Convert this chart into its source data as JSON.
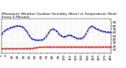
{
  "title": "Milwaukee Weather Outdoor Humidity (Blue) vs Temperature (Red) Every 5 Minutes",
  "title_fontsize": 3.2,
  "bg_color": "#ffffff",
  "grid_color": "#aaaaaa",
  "blue_color": "#0000dd",
  "red_color": "#dd0000",
  "ylim": [
    0,
    100
  ],
  "humidity": [
    55,
    57,
    59,
    61,
    63,
    65,
    66,
    67,
    68,
    69,
    70,
    71,
    72,
    73,
    74,
    74,
    75,
    75,
    76,
    76,
    77,
    77,
    78,
    78,
    79,
    79,
    80,
    80,
    80,
    80,
    79,
    79,
    79,
    78,
    78,
    78,
    77,
    76,
    75,
    73,
    71,
    69,
    67,
    65,
    63,
    61,
    58,
    55,
    52,
    49,
    47,
    45,
    43,
    42,
    41,
    40,
    40,
    39,
    39,
    39,
    38,
    38,
    38,
    38,
    38,
    38,
    38,
    38,
    38,
    39,
    39,
    40,
    41,
    42,
    43,
    45,
    47,
    49,
    51,
    54,
    57,
    59,
    62,
    64,
    66,
    68,
    69,
    70,
    71,
    71,
    71,
    70,
    69,
    68,
    67,
    65,
    63,
    61,
    59,
    57,
    55,
    53,
    52,
    51,
    50,
    49,
    49,
    49,
    49,
    49,
    49,
    50,
    50,
    51,
    52,
    52,
    53,
    53,
    53,
    53,
    52,
    52,
    51,
    50,
    49,
    48,
    47,
    46,
    45,
    44,
    43,
    43,
    43,
    43,
    43,
    43,
    43,
    43,
    44,
    44,
    45,
    46,
    48,
    50,
    52,
    55,
    58,
    61,
    64,
    67,
    70,
    73,
    75,
    77,
    78,
    79,
    79,
    79,
    78,
    77,
    76,
    75,
    74,
    73,
    72,
    71,
    70,
    69,
    68,
    67,
    67,
    66,
    66,
    65,
    65,
    64,
    64,
    63,
    63,
    62,
    62,
    62,
    62,
    62,
    62,
    62,
    62,
    62,
    62,
    62
  ],
  "temperature": [
    13,
    13,
    13,
    13,
    13,
    13,
    13,
    13,
    13,
    13,
    13,
    13,
    13,
    13,
    13,
    13,
    13,
    13,
    13,
    13,
    13,
    13,
    13,
    13,
    13,
    13,
    13,
    13,
    13,
    13,
    13,
    13,
    13,
    13,
    13,
    13,
    13,
    13,
    13,
    13,
    14,
    14,
    14,
    14,
    14,
    14,
    14,
    14,
    14,
    14,
    14,
    14,
    14,
    14,
    14,
    14,
    15,
    15,
    15,
    15,
    16,
    16,
    16,
    17,
    17,
    17,
    17,
    17,
    17,
    17,
    17,
    17,
    17,
    18,
    18,
    18,
    18,
    18,
    18,
    18,
    18,
    18,
    18,
    18,
    18,
    18,
    18,
    18,
    18,
    18,
    18,
    18,
    18,
    18,
    18,
    18,
    18,
    18,
    18,
    18,
    18,
    18,
    18,
    18,
    18,
    18,
    18,
    18,
    18,
    18,
    18,
    18,
    18,
    18,
    18,
    18,
    18,
    18,
    18,
    18,
    18,
    18,
    18,
    18,
    18,
    18,
    18,
    18,
    18,
    18,
    18,
    18,
    18,
    18,
    18,
    18,
    18,
    18,
    18,
    18,
    18,
    18,
    18,
    18,
    18,
    18,
    18,
    18,
    18,
    18,
    18,
    18,
    18,
    18,
    18,
    18,
    18,
    18,
    18,
    18,
    18,
    18,
    18,
    18,
    18,
    18,
    18,
    18,
    18,
    18,
    18,
    18,
    18,
    18,
    18,
    18,
    18,
    18,
    18,
    18,
    18,
    18,
    18,
    18,
    18,
    18,
    18,
    18,
    18,
    18
  ],
  "yticks": [
    10,
    20,
    30,
    40,
    50,
    60,
    70,
    80,
    90
  ],
  "ytick_labels": [
    "10",
    "20",
    "30",
    "40",
    "50",
    "60",
    "70",
    "80",
    "90"
  ],
  "n_xticks": 20,
  "tick_fontsize": 3.0,
  "line_width": 0.6,
  "marker_size": 0.6
}
